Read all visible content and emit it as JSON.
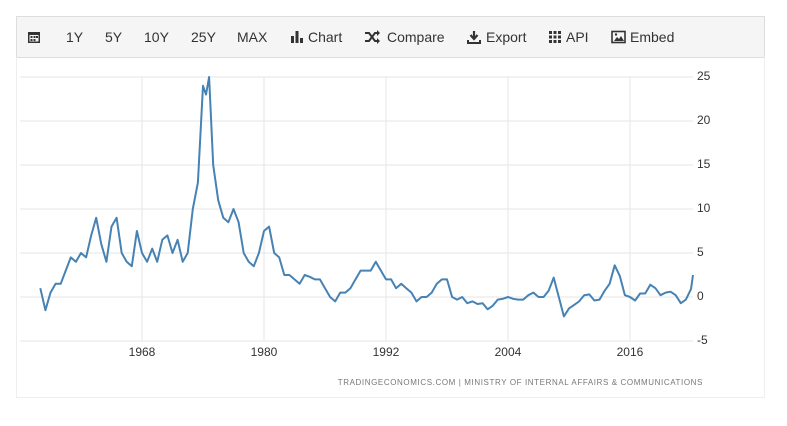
{
  "toolbar": [
    "1Y",
    "5Y",
    "10Y",
    "25Y",
    "MAX",
    "Chart",
    "Compare",
    "Export",
    "API",
    "Embed"
  ],
  "chart_data": {
    "type": "line",
    "source": "TRADINGECONOMICS.COM | MINISTRY OF INTERNAL AFFAIRS & COMMUNICATIONS",
    "x": [
      1958,
      1958.5,
      1959,
      1959.5,
      1960,
      1960.5,
      1961,
      1961.5,
      1962,
      1962.5,
      1963,
      1963.5,
      1964,
      1964.5,
      1965,
      1965.5,
      1966,
      1966.5,
      1967,
      1967.5,
      1968,
      1968.5,
      1969,
      1969.5,
      1970,
      1970.5,
      1971,
      1971.5,
      1972,
      1972.5,
      1973,
      1973.5,
      1974,
      1974.3,
      1974.6,
      1975,
      1975.5,
      1976,
      1976.5,
      1977,
      1977.5,
      1978,
      1978.5,
      1979,
      1979.5,
      1980,
      1980.5,
      1981,
      1981.5,
      1982,
      1982.5,
      1983,
      1983.5,
      1984,
      1984.5,
      1985,
      1985.5,
      1986,
      1986.5,
      1987,
      1987.5,
      1988,
      1988.5,
      1989,
      1989.5,
      1990,
      1990.5,
      1991,
      1991.5,
      1992,
      1992.5,
      1993,
      1993.5,
      1994,
      1994.5,
      1995,
      1995.5,
      1996,
      1996.5,
      1997,
      1997.5,
      1998,
      1998.5,
      1999,
      1999.5,
      2000,
      2000.5,
      2001,
      2001.5,
      2002,
      2002.5,
      2003,
      2003.5,
      2004,
      2004.5,
      2005,
      2005.5,
      2006,
      2006.5,
      2007,
      2007.5,
      2008,
      2008.5,
      2009,
      2009.5,
      2010,
      2010.5,
      2011,
      2011.5,
      2012,
      2012.5,
      2013,
      2013.5,
      2014,
      2014.5,
      2015,
      2015.5,
      2016,
      2016.5,
      2017,
      2017.5,
      2018,
      2018.5,
      2019,
      2019.5,
      2020,
      2020.5,
      2021,
      2021.5,
      2022,
      2022.2
    ],
    "values": [
      1,
      -1.5,
      0.5,
      1.5,
      1.5,
      3,
      4.5,
      4,
      5,
      4.5,
      7,
      9,
      6,
      4,
      8,
      9,
      5,
      4,
      3.5,
      7.5,
      5,
      4,
      5.5,
      4,
      6.5,
      7,
      5,
      6.5,
      4,
      5,
      10,
      13,
      24,
      23,
      25,
      15,
      11,
      9,
      8.5,
      10,
      8.5,
      5,
      4,
      3.5,
      5,
      7.5,
      8,
      5,
      4.5,
      2.5,
      2.5,
      2,
      1.5,
      2.5,
      2.3,
      2,
      2,
      1,
      0,
      -0.5,
      0.5,
      0.5,
      1,
      2,
      3,
      3,
      3,
      4,
      3,
      2,
      2,
      1,
      1.5,
      1,
      0.5,
      -0.5,
      0,
      0,
      0.5,
      1.5,
      2,
      2,
      0,
      -0.3,
      0,
      -0.7,
      -0.5,
      -0.8,
      -0.7,
      -1.4,
      -1,
      -0.3,
      -0.2,
      0,
      -0.2,
      -0.3,
      -0.3,
      0.2,
      0.5,
      0,
      0,
      0.7,
      2.2,
      0,
      -2.2,
      -1.3,
      -0.9,
      -0.5,
      0.2,
      0.3,
      -0.4,
      -0.3,
      0.7,
      1.5,
      3.6,
      2.4,
      0.2,
      0,
      -0.4,
      0.4,
      0.4,
      1.4,
      1,
      0.2,
      0.5,
      0.6,
      0.2,
      -0.7,
      -0.3,
      0.9,
      2.5
    ],
    "color": "#4682b4",
    "xlim": [
      1956,
      2022.2
    ],
    "xticks": [
      1968,
      1980,
      1992,
      2004,
      2016
    ],
    "ylim": [
      -5,
      25
    ],
    "yticks": [
      -5,
      0,
      5,
      10,
      15,
      20,
      25
    ],
    "grid": true
  }
}
